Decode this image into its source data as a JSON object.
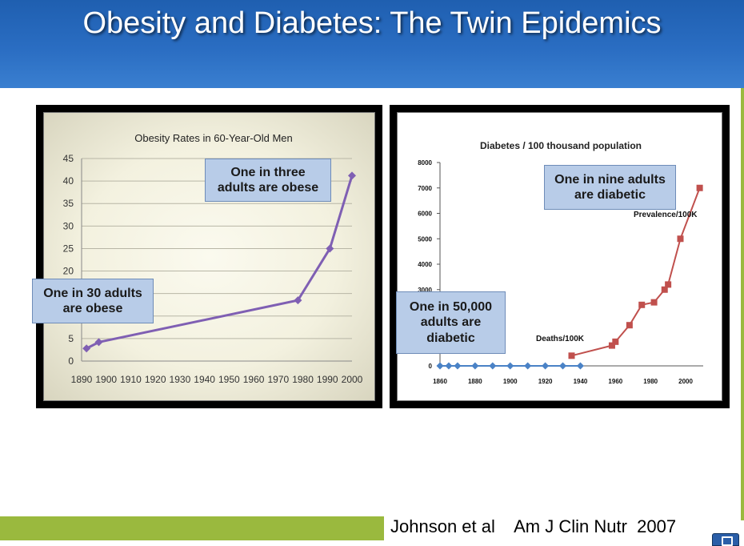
{
  "slide": {
    "title": "Obesity and Diabetes: The Twin Epidemics",
    "citation": "Johnson et al    Am J Clin Nutr  2007",
    "colors": {
      "header": "#2a6dc2",
      "accent_green": "#9ab93e",
      "callout_fill": "#b8cce8"
    }
  },
  "chart_data": [
    {
      "type": "line",
      "title": "Obesity Rates in 60-Year-Old Men",
      "xlabel": "",
      "ylabel": "",
      "xlim": [
        1890,
        2000
      ],
      "ylim": [
        0,
        45
      ],
      "x_ticks": [
        1890,
        1900,
        1910,
        1920,
        1930,
        1940,
        1950,
        1960,
        1970,
        1980,
        1990,
        2000
      ],
      "y_ticks": [
        0,
        5,
        10,
        15,
        20,
        25,
        30,
        35,
        40,
        45
      ],
      "grid": true,
      "series": [
        {
          "name": "Obesity rate",
          "color": "#7f5fb3",
          "x": [
            1892,
            1897,
            1978,
            1991,
            2000
          ],
          "y": [
            2.8,
            4.2,
            13.5,
            25.0,
            41.2
          ]
        }
      ],
      "annotations": [
        {
          "text": "One in 30 adults are obese"
        },
        {
          "text": "One in three adults are obese"
        }
      ]
    },
    {
      "type": "line",
      "title": "Diabetes / 100 thousand  population",
      "xlabel": "",
      "ylabel": "",
      "xlim": [
        1860,
        2010
      ],
      "ylim": [
        0,
        8000
      ],
      "x_ticks": [
        1860,
        1880,
        1900,
        1920,
        1940,
        1960,
        1980,
        2000
      ],
      "y_ticks": [
        0,
        3000,
        4000,
        5000,
        6000,
        7000,
        8000
      ],
      "grid": false,
      "series": [
        {
          "name": "Deaths/100K",
          "color": "#4a82c6",
          "x": [
            1860,
            1880,
            1900,
            1920,
            1940,
            1860,
            1865,
            1870,
            1880,
            1890,
            1900,
            1910,
            1920,
            1930,
            1940
          ],
          "y": [
            0,
            0,
            0,
            0,
            0,
            0,
            0,
            0,
            0,
            0,
            0,
            0,
            0,
            0,
            0
          ]
        },
        {
          "name": "Prevalence/100K",
          "color": "#c0504d",
          "x": [
            1935,
            1958,
            1960,
            1968,
            1975,
            1982,
            1988,
            1990,
            1997,
            2008
          ],
          "y": [
            400,
            800,
            950,
            1600,
            2400,
            2500,
            3000,
            3200,
            5000,
            7000
          ]
        }
      ],
      "series_labels": [
        "Deaths/100K",
        "Prevalence/100K"
      ],
      "annotations": [
        {
          "text": "One in 50,000 adults are diabetic"
        },
        {
          "text": "One in nine adults are diabetic"
        }
      ]
    }
  ],
  "callouts": {
    "left_low_line1": "One in 30 adults",
    "left_low_line2": "are obese",
    "left_high_line1": "One in three",
    "left_high_line2": "adults are obese",
    "right_low_line1": "One in 50,000",
    "right_low_line2": "adults are",
    "right_low_line3": "diabetic",
    "right_high_line1": "One in nine adults",
    "right_high_line2": "are diabetic"
  }
}
